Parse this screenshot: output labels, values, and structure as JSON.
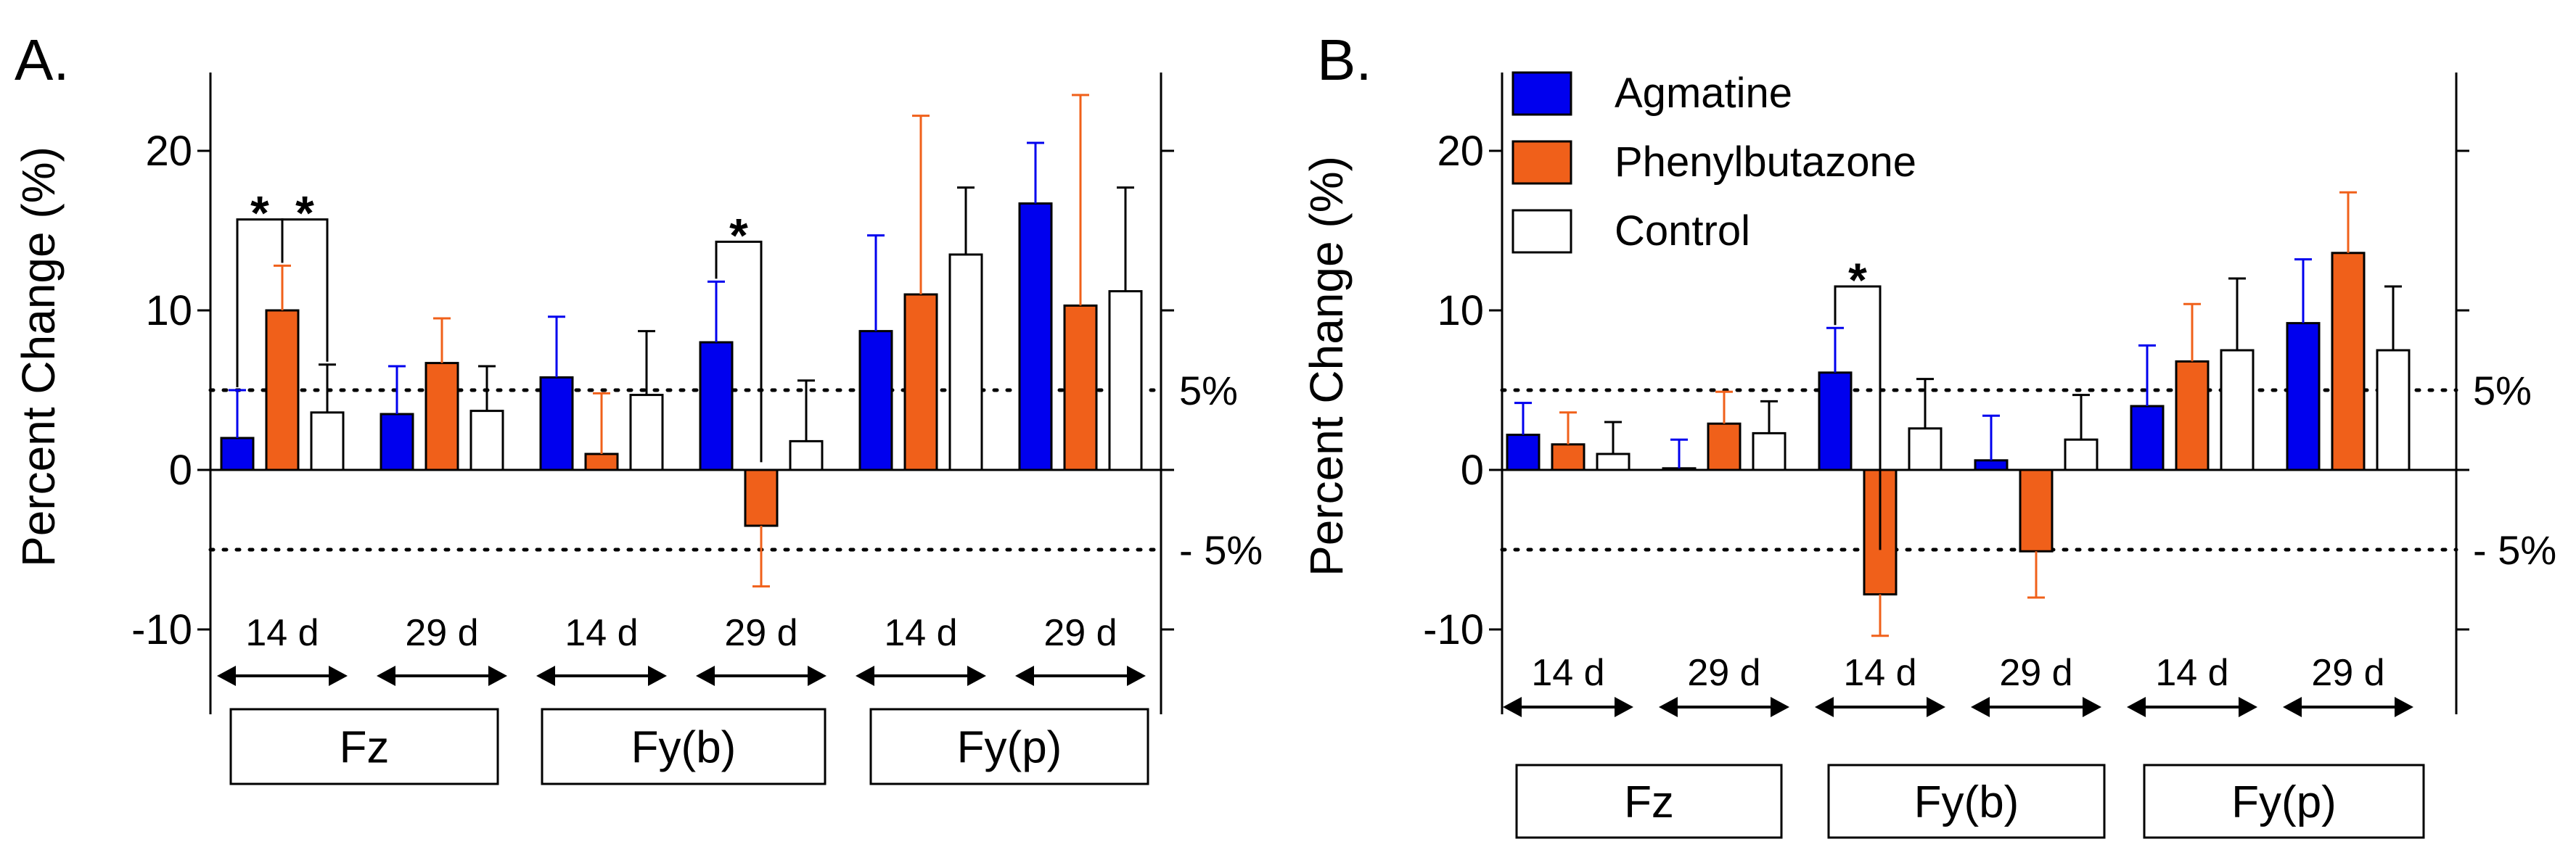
{
  "colors": {
    "agmatine": "#0000EE",
    "phenylbutazone": "#F0601A",
    "control": "#FFFFFF",
    "axis": "#000000"
  },
  "chart_data": [
    {
      "panel_label": "A.",
      "type": "bar",
      "ylabel": "Percent Change (%)",
      "ylim": [
        -15,
        25
      ],
      "yticks": [
        -10,
        0,
        10,
        20
      ],
      "ytick_labels": [
        "-10",
        "0",
        "10",
        "20"
      ],
      "reference_lines": [
        5,
        -5
      ],
      "reference_labels": [
        "5%",
        "- 5%"
      ],
      "group_labels": [
        "14 d",
        "29 d",
        "14 d",
        "29 d",
        "14 d",
        "29 d"
      ],
      "force_labels": [
        "Fz",
        "Fy(b)",
        "Fy(p)"
      ],
      "series": [
        {
          "name": "Agmatine",
          "values": [
            2.0,
            3.5,
            5.8,
            8.0,
            8.7,
            16.7
          ],
          "errors": [
            3.0,
            3.0,
            3.8,
            3.8,
            6.0,
            3.8
          ]
        },
        {
          "name": "Phenylbutazone",
          "values": [
            10.0,
            6.7,
            1.0,
            -3.5,
            11.0,
            10.3
          ],
          "errors": [
            2.8,
            2.8,
            3.8,
            3.8,
            11.2,
            13.2
          ]
        },
        {
          "name": "Control",
          "values": [
            3.6,
            3.7,
            4.7,
            1.8,
            13.5,
            11.2
          ],
          "errors": [
            3.0,
            2.8,
            4.0,
            3.8,
            4.2,
            6.5
          ]
        }
      ],
      "significance": [
        {
          "label": "*",
          "group": 0,
          "from": 0,
          "to": 1,
          "y": 15.7
        },
        {
          "label": "*",
          "group": 0,
          "from": 1,
          "to": 2,
          "y": 15.7
        },
        {
          "label": "*",
          "group": 3,
          "from": 0,
          "to": 1,
          "y": 14.3
        }
      ]
    },
    {
      "panel_label": "B.",
      "type": "bar",
      "ylabel": "Percent Change (%)",
      "ylim": [
        -15,
        25
      ],
      "yticks": [
        -10,
        0,
        10,
        20
      ],
      "ytick_labels": [
        "-10",
        "0",
        "10",
        "20"
      ],
      "reference_lines": [
        5,
        -5
      ],
      "reference_labels": [
        "5%",
        "- 5%"
      ],
      "legend": {
        "position": "top-left",
        "entries": [
          "Agmatine",
          "Phenylbutazone",
          "Control"
        ]
      },
      "group_labels": [
        "14 d",
        "29 d",
        "14 d",
        "29 d",
        "14 d",
        "29 d"
      ],
      "force_labels": [
        "Fz",
        "Fy(b)",
        "Fy(p)"
      ],
      "series": [
        {
          "name": "Agmatine",
          "values": [
            2.2,
            0.1,
            6.1,
            0.6,
            4.0,
            9.2
          ],
          "errors": [
            2.0,
            1.8,
            2.8,
            2.8,
            3.8,
            4.0
          ]
        },
        {
          "name": "Phenylbutazone",
          "values": [
            1.6,
            2.9,
            -7.8,
            -5.1,
            6.8,
            13.6
          ],
          "errors": [
            2.0,
            2.0,
            2.6,
            2.9,
            3.6,
            3.8
          ]
        },
        {
          "name": "Control",
          "values": [
            1.0,
            2.3,
            2.6,
            1.9,
            7.5,
            7.5
          ],
          "errors": [
            2.0,
            2.0,
            3.1,
            2.8,
            4.5,
            4.0
          ]
        }
      ],
      "significance": [
        {
          "label": "*",
          "group": 2,
          "from": 0,
          "to": 1,
          "y": 11.5
        }
      ]
    }
  ]
}
